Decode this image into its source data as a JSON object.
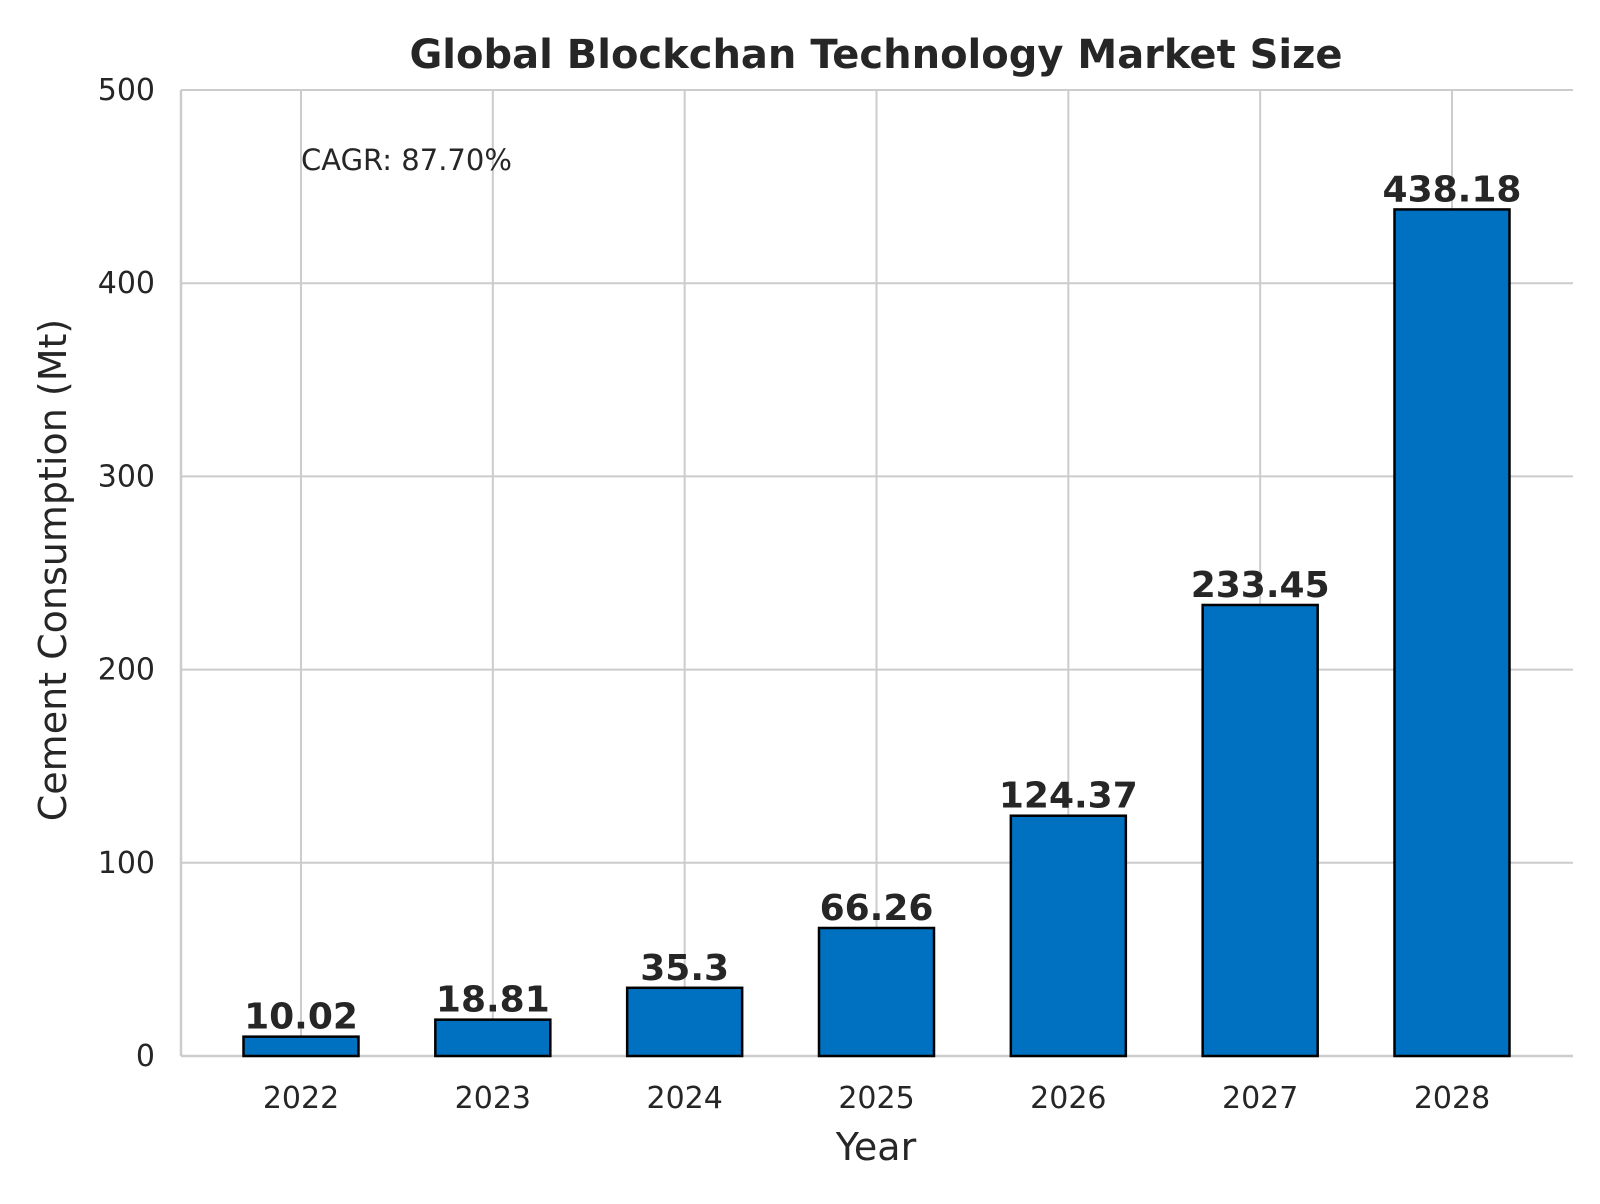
{
  "chart_data": {
    "type": "bar",
    "title": "Global Blockchan Technology Market Size",
    "xlabel": "Year",
    "ylabel": "Cement Consumption (Mt)",
    "categories": [
      "2022",
      "2023",
      "2024",
      "2025",
      "2026",
      "2027",
      "2028"
    ],
    "values": [
      10.02,
      18.81,
      35.3,
      66.26,
      124.37,
      233.45,
      438.18
    ],
    "value_labels": [
      "10.02",
      "18.81",
      "35.3",
      "66.26",
      "124.37",
      "233.45",
      "438.18"
    ],
    "ylim": [
      0,
      500
    ],
    "yticks": [
      0,
      100,
      200,
      300,
      400,
      500
    ],
    "annotation": "CAGR: 87.70%",
    "grid": true,
    "legend": "none",
    "colors": {
      "bar": "#0070c0",
      "bar_edge": "#000000",
      "grid": "#cccccc",
      "text": "#262626"
    }
  }
}
